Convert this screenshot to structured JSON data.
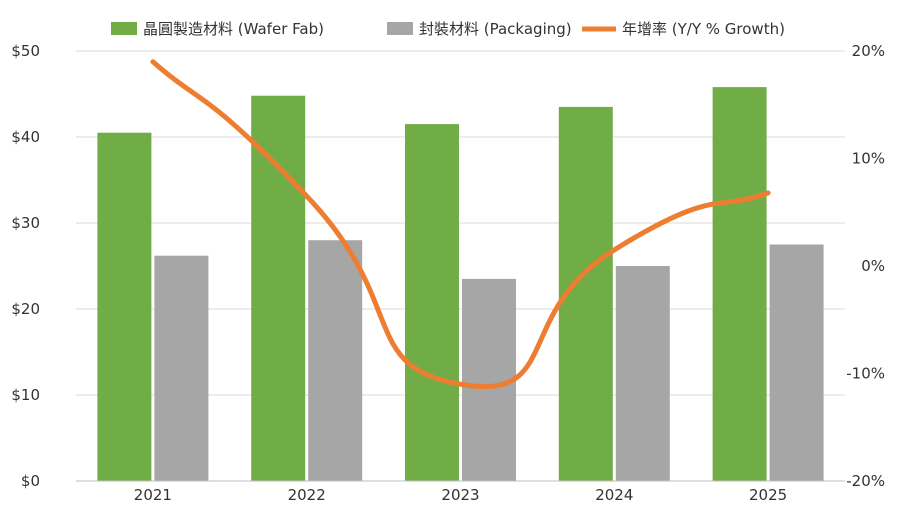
{
  "chart_data": {
    "type": "bar",
    "categories": [
      "2021",
      "2022",
      "2023",
      "2024",
      "2025"
    ],
    "series": [
      {
        "name": "晶圓製造材料 (Wafer Fab)",
        "values": [
          40.5,
          44.8,
          41.5,
          43.5,
          45.8
        ],
        "color": "#70ad47",
        "axis": "left"
      },
      {
        "name": "封裝材料 (Packaging)",
        "values": [
          26.2,
          28.0,
          23.5,
          25.0,
          27.5
        ],
        "color": "#a6a6a6",
        "axis": "left"
      },
      {
        "name": "年增率 (Y/Y % Growth)",
        "type": "line",
        "values": [
          19.0,
          6.5,
          -11.0,
          1.5,
          6.8
        ],
        "color": "#ed7d31",
        "axis": "right"
      }
    ],
    "y_left": {
      "ylim": [
        0,
        50
      ],
      "ticks": [
        0,
        10,
        20,
        30,
        40,
        50
      ],
      "tick_labels": [
        "$0",
        "$10",
        "$20",
        "$30",
        "$40",
        "$50"
      ]
    },
    "y_right": {
      "ylim": [
        -20,
        20
      ],
      "ticks": [
        -20,
        -10,
        0,
        10,
        20
      ],
      "tick_labels": [
        "-20%",
        "-10%",
        "0%",
        "10%",
        "20%"
      ]
    },
    "title": "",
    "xlabel": "",
    "ylabel": "",
    "grid": true,
    "legend_position": "top"
  }
}
